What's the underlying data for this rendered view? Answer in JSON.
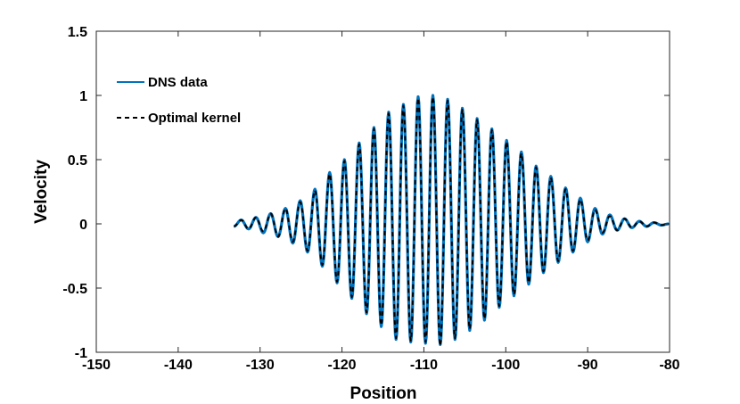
{
  "chart_data": {
    "type": "line",
    "title": "",
    "xlabel": "Position",
    "ylabel": "Velocity",
    "xlim": [
      -150,
      -80
    ],
    "ylim": [
      -1,
      1.5
    ],
    "x_ticks": [
      -150,
      -140,
      -130,
      -120,
      -110,
      -100,
      -90,
      -80
    ],
    "y_ticks": [
      -1,
      -0.5,
      0,
      0.5,
      1,
      1.5
    ],
    "x_tick_labels": [
      "-150",
      "-140",
      "-130",
      "-120",
      "-110",
      "-100",
      "-90",
      "-80"
    ],
    "y_tick_labels": [
      "-1",
      "-0.5",
      "0",
      "0.5",
      "1",
      "1.5"
    ],
    "grid": false,
    "legend_position": "top-left",
    "series": [
      {
        "name": "DNS data",
        "color": "#0072BD",
        "style": "solid",
        "x": [
          -133.2,
          -132.3,
          -131.4,
          -130.5,
          -129.6,
          -128.7,
          -127.8,
          -126.9,
          -126.0,
          -125.1,
          -124.2,
          -123.3,
          -122.4,
          -121.5,
          -120.6,
          -119.7,
          -118.8,
          -117.9,
          -117.0,
          -116.1,
          -115.2,
          -114.3,
          -113.4,
          -112.5,
          -111.6,
          -110.7,
          -109.8,
          -108.9,
          -108.0,
          -107.1,
          -106.2,
          -105.3,
          -104.4,
          -103.5,
          -102.6,
          -101.7,
          -100.8,
          -99.9,
          -99.0,
          -98.1,
          -97.2,
          -96.3,
          -95.4,
          -94.5,
          -93.6,
          -92.7,
          -91.8,
          -90.9,
          -90.0,
          -89.1,
          -88.2,
          -87.3,
          -86.4,
          -85.5,
          -84.6,
          -83.7,
          -82.8,
          -81.9,
          -81.0,
          -80.1
        ],
        "y": [
          -0.02,
          0.03,
          -0.04,
          0.05,
          -0.07,
          0.08,
          -0.1,
          0.12,
          -0.15,
          0.18,
          -0.22,
          0.27,
          -0.33,
          0.4,
          -0.46,
          0.5,
          -0.58,
          0.63,
          -0.7,
          0.75,
          -0.8,
          0.87,
          -0.9,
          0.93,
          -0.92,
          0.99,
          -0.93,
          1.0,
          -0.94,
          0.97,
          -0.9,
          0.9,
          -0.83,
          0.82,
          -0.75,
          0.74,
          -0.65,
          0.65,
          -0.56,
          0.56,
          -0.47,
          0.45,
          -0.38,
          0.37,
          -0.3,
          0.28,
          -0.22,
          0.2,
          -0.14,
          0.12,
          -0.08,
          0.07,
          -0.05,
          0.04,
          -0.03,
          0.02,
          -0.02,
          0.01,
          -0.01,
          0.0
        ]
      },
      {
        "name": "Optimal kernel",
        "color": "#000000",
        "style": "dashed",
        "x": [
          -133.2,
          -132.3,
          -131.4,
          -130.5,
          -129.6,
          -128.7,
          -127.8,
          -126.9,
          -126.0,
          -125.1,
          -124.2,
          -123.3,
          -122.4,
          -121.5,
          -120.6,
          -119.7,
          -118.8,
          -117.9,
          -117.0,
          -116.1,
          -115.2,
          -114.3,
          -113.4,
          -112.5,
          -111.6,
          -110.7,
          -109.8,
          -108.9,
          -108.0,
          -107.1,
          -106.2,
          -105.3,
          -104.4,
          -103.5,
          -102.6,
          -101.7,
          -100.8,
          -99.9,
          -99.0,
          -98.1,
          -97.2,
          -96.3,
          -95.4,
          -94.5,
          -93.6,
          -92.7,
          -91.8,
          -90.9,
          -90.0,
          -89.1,
          -88.2,
          -87.3,
          -86.4,
          -85.5,
          -84.6,
          -83.7,
          -82.8,
          -81.9,
          -81.0,
          -80.1
        ],
        "y": [
          -0.02,
          0.03,
          -0.04,
          0.05,
          -0.06,
          0.08,
          -0.1,
          0.12,
          -0.14,
          0.17,
          -0.21,
          0.26,
          -0.32,
          0.39,
          -0.45,
          0.49,
          -0.57,
          0.62,
          -0.69,
          0.74,
          -0.79,
          0.86,
          -0.89,
          0.92,
          -0.91,
          0.98,
          -0.92,
          0.99,
          -0.95,
          0.96,
          -0.89,
          0.89,
          -0.82,
          0.81,
          -0.74,
          0.73,
          -0.64,
          0.64,
          -0.55,
          0.55,
          -0.46,
          0.44,
          -0.37,
          0.36,
          -0.29,
          0.27,
          -0.21,
          0.19,
          -0.13,
          0.11,
          -0.07,
          0.06,
          -0.05,
          0.04,
          -0.03,
          0.02,
          -0.02,
          0.01,
          -0.01,
          0.0
        ]
      }
    ]
  }
}
